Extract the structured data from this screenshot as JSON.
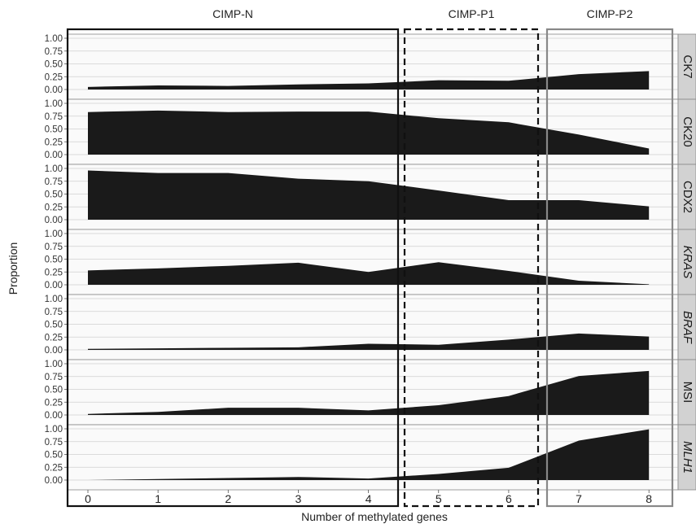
{
  "chart_data": {
    "type": "area",
    "xlabel": "Number of methylated genes",
    "ylabel": "Proportion",
    "x": [
      0,
      1,
      2,
      3,
      4,
      5,
      6,
      7,
      8
    ],
    "ylim": [
      0,
      1
    ],
    "yticks": [
      "0.00",
      "0.25",
      "0.50",
      "0.75",
      "1.00"
    ],
    "groups": [
      {
        "label": "CIMP-N",
        "style": "solid",
        "color": "#111111"
      },
      {
        "label": "CIMP-P1",
        "style": "dashed",
        "color": "#111111"
      },
      {
        "label": "CIMP-P2",
        "style": "solid",
        "color": "#888888"
      }
    ],
    "series": [
      {
        "name": "CK7",
        "italic": false,
        "values": [
          0.05,
          0.08,
          0.07,
          0.1,
          0.12,
          0.18,
          0.17,
          0.3,
          0.36
        ]
      },
      {
        "name": "CK20",
        "italic": false,
        "values": [
          0.83,
          0.86,
          0.83,
          0.84,
          0.84,
          0.71,
          0.63,
          0.39,
          0.12
        ]
      },
      {
        "name": "CDX2",
        "italic": false,
        "values": [
          0.96,
          0.91,
          0.91,
          0.8,
          0.75,
          0.57,
          0.38,
          0.38,
          0.26
        ]
      },
      {
        "name": "KRAS",
        "italic": true,
        "values": [
          0.28,
          0.32,
          0.37,
          0.43,
          0.25,
          0.44,
          0.27,
          0.08,
          0.01
        ]
      },
      {
        "name": "BRAF",
        "italic": true,
        "values": [
          0.02,
          0.03,
          0.04,
          0.05,
          0.12,
          0.1,
          0.2,
          0.32,
          0.26
        ]
      },
      {
        "name": "MSI",
        "italic": false,
        "values": [
          0.02,
          0.06,
          0.14,
          0.14,
          0.09,
          0.19,
          0.37,
          0.76,
          0.86
        ]
      },
      {
        "name": "MLH1",
        "italic": true,
        "values": [
          0.0,
          0.02,
          0.04,
          0.06,
          0.03,
          0.12,
          0.24,
          0.77,
          0.99
        ]
      }
    ],
    "colors": {
      "fill": "#1a1a1a",
      "panel_bg": "#fafafa",
      "strip_bg": "#d2d2d2",
      "grid": "#d0d0d0"
    },
    "grid": true
  }
}
